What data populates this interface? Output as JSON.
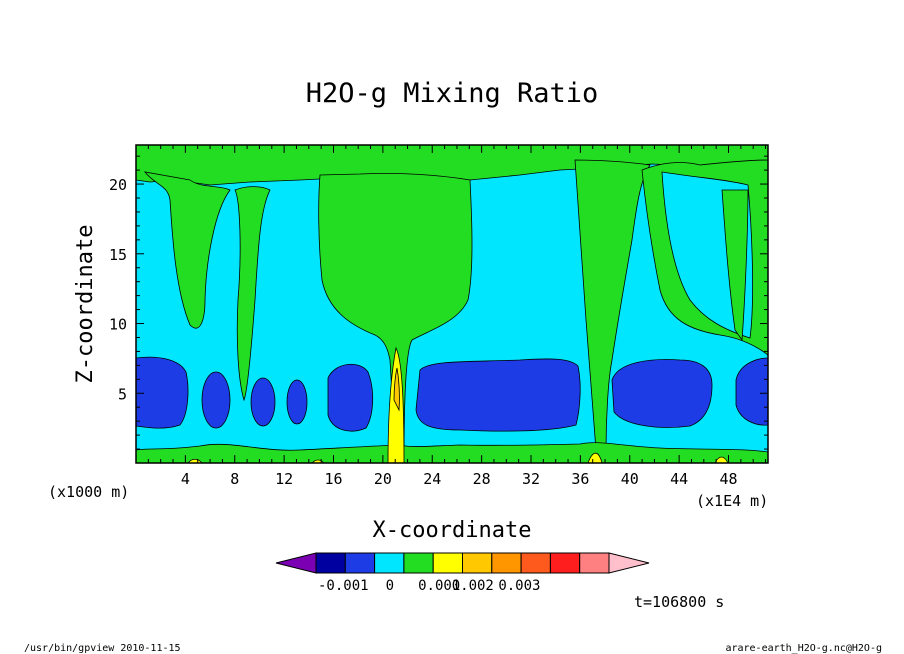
{
  "chart_data": {
    "type": "contour",
    "title": "H2O-g Mixing Ratio",
    "xlabel": "X-coordinate",
    "ylabel": "Z-coordinate",
    "x_unit_left": "(x1000 m)",
    "x_unit_right": "(x1E4 m)",
    "xlim": [
      0,
      51.2
    ],
    "ylim": [
      0,
      22.8
    ],
    "x_ticks": [
      4,
      8,
      12,
      16,
      20,
      24,
      28,
      32,
      36,
      40,
      44,
      48
    ],
    "y_ticks": [
      5,
      10,
      15,
      20
    ],
    "colorbar": {
      "colors": [
        "#7b00b4",
        "#0000a0",
        "#1e3ce6",
        "#00e6ff",
        "#22dd22",
        "#ffff00",
        "#ffc800",
        "#ff9600",
        "#ff5a1e",
        "#ff1e1e",
        "#ff8080",
        "#ffc0cb"
      ],
      "tick_labels": [
        "-0.001",
        "0",
        "0.001",
        "0.002",
        "0.003"
      ]
    },
    "time_label": "t=106800 s",
    "program": "/usr/bin/gpview  2010-11-15",
    "file": "arare-earth_H2O-g.nc@H2O-g"
  }
}
